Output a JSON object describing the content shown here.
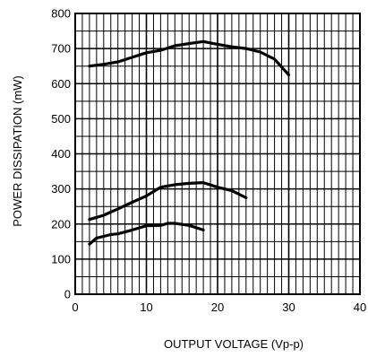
{
  "chart_data": {
    "type": "line",
    "xlabel": "OUTPUT VOLTAGE (Vp-p)",
    "ylabel": "POWER DISSIPATION (mW)",
    "xlim": [
      0,
      40
    ],
    "ylim": [
      0,
      800
    ],
    "xticks": [
      0,
      10,
      20,
      30,
      40
    ],
    "yticks": [
      0,
      100,
      200,
      300,
      400,
      500,
      600,
      700,
      800
    ],
    "x_minor_step": 1,
    "y_minor_step": 50,
    "grid": true,
    "series": [
      {
        "x": [
          2,
          4,
          6,
          8,
          10,
          12,
          14,
          16,
          18,
          20,
          22,
          24,
          26,
          28,
          30
        ],
        "y": [
          650,
          655,
          662,
          675,
          688,
          695,
          708,
          714,
          720,
          712,
          705,
          700,
          690,
          670,
          625
        ]
      },
      {
        "x": [
          2,
          4,
          6,
          8,
          10,
          12,
          14,
          16,
          18,
          20,
          22,
          24
        ],
        "y": [
          213,
          225,
          243,
          262,
          280,
          305,
          312,
          316,
          318,
          305,
          295,
          275
        ]
      },
      {
        "x": [
          2,
          3,
          5,
          6,
          8,
          10,
          12,
          13,
          14,
          16,
          18
        ],
        "y": [
          143,
          160,
          170,
          172,
          183,
          195,
          196,
          202,
          202,
          196,
          183
        ]
      }
    ]
  }
}
